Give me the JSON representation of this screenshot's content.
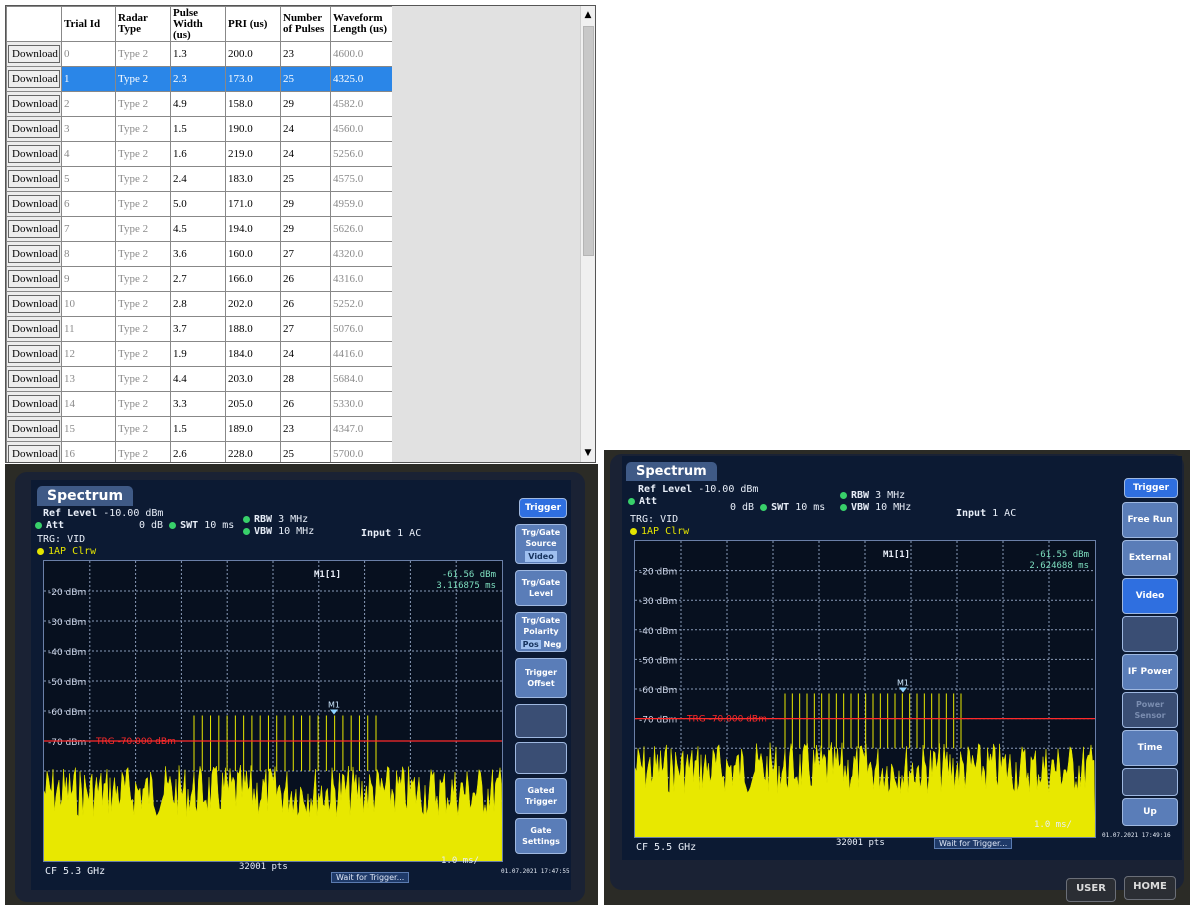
{
  "table": {
    "headers": [
      "",
      "Trial Id",
      "Radar Type",
      "Pulse Width (us)",
      "PRI (us)",
      "Number of Pulses",
      "Waveform Length (us)"
    ],
    "button_label": "Download",
    "rows": [
      {
        "trial_id": "0",
        "radar_type": "Type 2",
        "pulse_width": "1.3",
        "pri": "200.0",
        "num_pulses": "23",
        "waveform_length": "4600.0",
        "selected": false
      },
      {
        "trial_id": "1",
        "radar_type": "Type 2",
        "pulse_width": "2.3",
        "pri": "173.0",
        "num_pulses": "25",
        "waveform_length": "4325.0",
        "selected": true
      },
      {
        "trial_id": "2",
        "radar_type": "Type 2",
        "pulse_width": "4.9",
        "pri": "158.0",
        "num_pulses": "29",
        "waveform_length": "4582.0",
        "selected": false
      },
      {
        "trial_id": "3",
        "radar_type": "Type 2",
        "pulse_width": "1.5",
        "pri": "190.0",
        "num_pulses": "24",
        "waveform_length": "4560.0",
        "selected": false
      },
      {
        "trial_id": "4",
        "radar_type": "Type 2",
        "pulse_width": "1.6",
        "pri": "219.0",
        "num_pulses": "24",
        "waveform_length": "5256.0",
        "selected": false
      },
      {
        "trial_id": "5",
        "radar_type": "Type 2",
        "pulse_width": "2.4",
        "pri": "183.0",
        "num_pulses": "25",
        "waveform_length": "4575.0",
        "selected": false
      },
      {
        "trial_id": "6",
        "radar_type": "Type 2",
        "pulse_width": "5.0",
        "pri": "171.0",
        "num_pulses": "29",
        "waveform_length": "4959.0",
        "selected": false
      },
      {
        "trial_id": "7",
        "radar_type": "Type 2",
        "pulse_width": "4.5",
        "pri": "194.0",
        "num_pulses": "29",
        "waveform_length": "5626.0",
        "selected": false
      },
      {
        "trial_id": "8",
        "radar_type": "Type 2",
        "pulse_width": "3.6",
        "pri": "160.0",
        "num_pulses": "27",
        "waveform_length": "4320.0",
        "selected": false
      },
      {
        "trial_id": "9",
        "radar_type": "Type 2",
        "pulse_width": "2.7",
        "pri": "166.0",
        "num_pulses": "26",
        "waveform_length": "4316.0",
        "selected": false
      },
      {
        "trial_id": "10",
        "radar_type": "Type 2",
        "pulse_width": "2.8",
        "pri": "202.0",
        "num_pulses": "26",
        "waveform_length": "5252.0",
        "selected": false
      },
      {
        "trial_id": "11",
        "radar_type": "Type 2",
        "pulse_width": "3.7",
        "pri": "188.0",
        "num_pulses": "27",
        "waveform_length": "5076.0",
        "selected": false
      },
      {
        "trial_id": "12",
        "radar_type": "Type 2",
        "pulse_width": "1.9",
        "pri": "184.0",
        "num_pulses": "24",
        "waveform_length": "4416.0",
        "selected": false
      },
      {
        "trial_id": "13",
        "radar_type": "Type 2",
        "pulse_width": "4.4",
        "pri": "203.0",
        "num_pulses": "28",
        "waveform_length": "5684.0",
        "selected": false
      },
      {
        "trial_id": "14",
        "radar_type": "Type 2",
        "pulse_width": "3.3",
        "pri": "205.0",
        "num_pulses": "26",
        "waveform_length": "5330.0",
        "selected": false
      },
      {
        "trial_id": "15",
        "radar_type": "Type 2",
        "pulse_width": "1.5",
        "pri": "189.0",
        "num_pulses": "23",
        "waveform_length": "4347.0",
        "selected": false
      },
      {
        "trial_id": "16",
        "radar_type": "Type 2",
        "pulse_width": "2.6",
        "pri": "228.0",
        "num_pulses": "25",
        "waveform_length": "5700.0",
        "selected": false
      }
    ]
  },
  "scrollbar": {
    "up_icon": "▲",
    "down_icon": "▼"
  },
  "left_analyzer": {
    "title": "Spectrum",
    "ref_level_label": "Ref Level",
    "ref_level": "-10.00 dBm",
    "att_label": "Att",
    "att_value": "0 dB",
    "swt_label": "SWT",
    "swt_value": "10 ms",
    "rbw_label": "RBW",
    "rbw_value": "3 MHz",
    "vbw_label": "VBW",
    "vbw_value": "10 MHz",
    "input_label": "Input",
    "input_value": "1 AC",
    "trg": "TRG: VID",
    "trace": "1AP Clrw",
    "marker_label": "M1[1]",
    "marker_value": "-61.56 dBm",
    "marker_time": "3.116875 ms",
    "marker_short": "M1",
    "y_labels": [
      "-20 dBm",
      "-30 dBm",
      "-40 dBm",
      "-50 dBm",
      "-60 dBm",
      "-70 dBm"
    ],
    "trg_line": "TRG -70.000 dBm",
    "cf": "CF 5.3 GHz",
    "pts": "32001 pts",
    "span": "1.0 ms/",
    "status": "Wait for Trigger...",
    "softkeys": [
      "Trigger",
      "Trg/Gate Source",
      "Video",
      "Trg/Gate Level",
      "Trg/Gate Polarity",
      "Pos",
      "Neg",
      "Trigger Offset",
      "Gated Trigger",
      "Gate Settings"
    ],
    "datetime": "01.07.2021 17:47:55"
  },
  "right_analyzer": {
    "title": "Spectrum",
    "ref_level_label": "Ref Level",
    "ref_level": "-10.00 dBm",
    "att_label": "Att",
    "att_value": "0 dB",
    "swt_label": "SWT",
    "swt_value": "10 ms",
    "rbw_label": "RBW",
    "rbw_value": "3 MHz",
    "vbw_label": "VBW",
    "vbw_value": "10 MHz",
    "input_label": "Input",
    "input_value": "1 AC",
    "trg": "TRG: VID",
    "trace": "1AP Clrw",
    "marker_label": "M1[1]",
    "marker_value": "-61.55 dBm",
    "marker_time": "2.624688 ms",
    "marker_short": "M1",
    "y_labels": [
      "-20 dBm",
      "-30 dBm",
      "-40 dBm",
      "-50 dBm",
      "-60 dBm",
      "-70 dBm"
    ],
    "trg_line": "TRG -70.000 dBm",
    "cf": "CF 5.5 GHz",
    "pts": "32001 pts",
    "span": "1.0 ms/",
    "status": "Wait for Trigger...",
    "softkeys": [
      "Trigger",
      "Free Run",
      "External",
      "Video",
      "IF Power",
      "Power Sensor",
      "Time",
      "Up"
    ],
    "datetime": "01.07.2021 17:49:16",
    "hw_buttons": [
      "USER",
      "HOME"
    ]
  },
  "colors": {
    "trace": "#e8e800",
    "trigger_line": "#ff2a2a",
    "selected_row": "#2a86e8",
    "softkey": "#5a7db8"
  }
}
